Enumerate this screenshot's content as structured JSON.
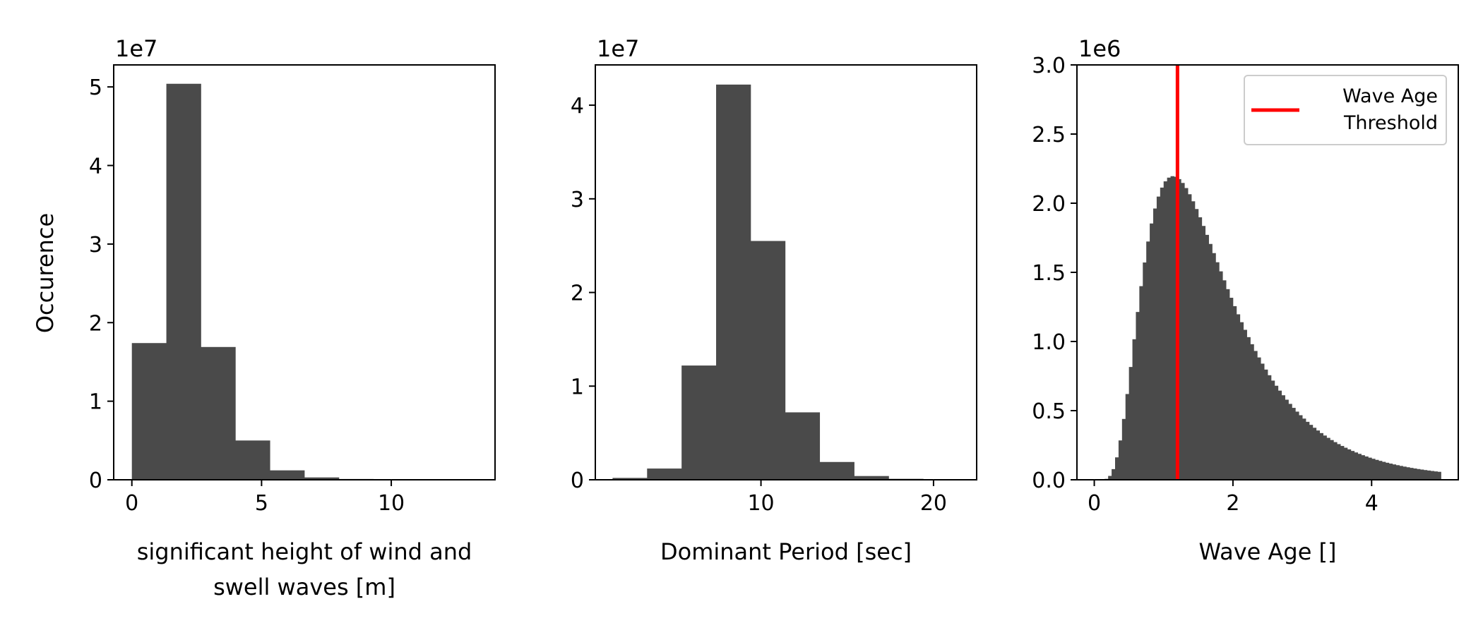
{
  "figure": {
    "ylabel": "Occurence",
    "bar_color": "#4a4a4a",
    "threshold_color": "#ff0000"
  },
  "chart_data": [
    {
      "type": "bar",
      "histogram": true,
      "offset_text": "1e7",
      "xlabel_lines": [
        "significant height of wind and",
        "swell waves [m]"
      ],
      "ylabel": "Occurence",
      "xlim": [
        -0.7,
        14.0
      ],
      "ylim": [
        0,
        5.28
      ],
      "xticks": [
        0,
        5,
        10
      ],
      "xtick_labels": [
        "0",
        "5",
        "10"
      ],
      "yticks": [
        0,
        1,
        2,
        3,
        4,
        5
      ],
      "ytick_labels": [
        "0",
        "1",
        "2",
        "3",
        "4",
        "5"
      ],
      "bin_edges": [
        0,
        1.33,
        2.66,
        3.99,
        5.32,
        6.65,
        7.98,
        9.31,
        10.64,
        11.97,
        13.3
      ],
      "values": [
        1.74,
        5.04,
        1.69,
        0.5,
        0.12,
        0.03,
        0.01,
        0.004,
        0.002,
        0.001
      ]
    },
    {
      "type": "bar",
      "histogram": true,
      "offset_text": "1e7",
      "xlabel_lines": [
        "Dominant Period [sec]"
      ],
      "xlim": [
        0.4,
        22.5
      ],
      "ylim": [
        0,
        4.43
      ],
      "xticks": [
        10,
        20
      ],
      "xtick_labels": [
        "10",
        "20"
      ],
      "yticks": [
        0,
        1,
        2,
        3,
        4
      ],
      "ytick_labels": [
        "0",
        "1",
        "2",
        "3",
        "4"
      ],
      "bin_edges": [
        1.4,
        3.4,
        5.4,
        7.4,
        9.4,
        11.4,
        13.4,
        15.4,
        17.4,
        19.4,
        21.4
      ],
      "values": [
        0.02,
        0.12,
        1.22,
        4.22,
        2.55,
        0.72,
        0.19,
        0.04,
        0.01,
        0.005
      ]
    },
    {
      "type": "bar",
      "histogram": true,
      "offset_text": "1e6",
      "xlabel_lines": [
        "Wave Age []"
      ],
      "xlim": [
        -0.25,
        5.25
      ],
      "ylim": [
        0,
        3.0
      ],
      "xticks": [
        0,
        2,
        4
      ],
      "xtick_labels": [
        "0",
        "2",
        "4"
      ],
      "yticks": [
        0,
        0.5,
        1,
        1.5,
        2,
        2.5,
        3
      ],
      "ytick_labels": [
        "0.0",
        "0.5",
        "1.0",
        "1.5",
        "2.0",
        "2.5",
        "3.0"
      ],
      "bin_range": [
        0,
        5
      ],
      "bin_count": 100,
      "peak_value": 2.04,
      "peak_at": 1.4,
      "threshold_x": 1.2,
      "threshold_label_lines": [
        "Wave Age",
        "Threshold"
      ],
      "legend_position": "top-right"
    }
  ]
}
